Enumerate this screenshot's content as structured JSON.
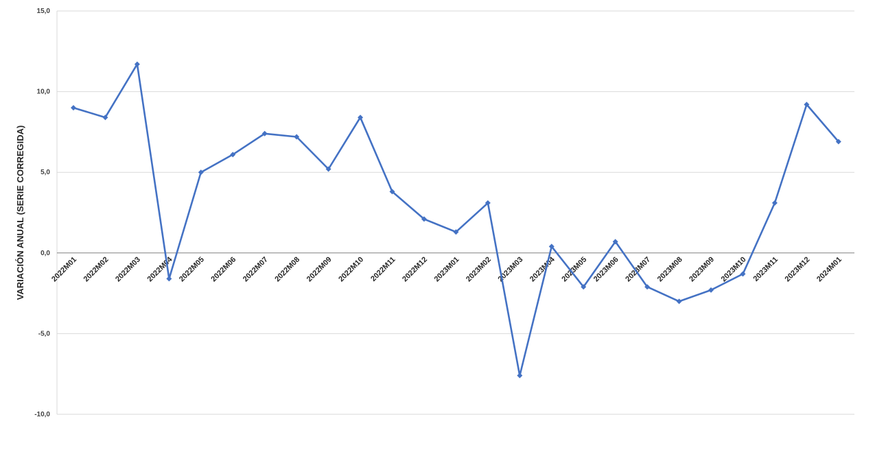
{
  "chart_data": {
    "type": "line",
    "title": "",
    "xlabel": "",
    "ylabel": "VARIACIÓN ANUAL (SERIE CORREGIDA)",
    "ylim": [
      -10,
      15
    ],
    "yticks": [
      -10,
      -5,
      0,
      5,
      10,
      15
    ],
    "ytick_labels": [
      "-10,0",
      "-5,0",
      "0,0",
      "5,0",
      "10,0",
      "15,0"
    ],
    "grid": true,
    "legend": "none",
    "categories": [
      "2022M01",
      "2022M02",
      "2022M03",
      "2022M04",
      "2022M05",
      "2022M06",
      "2022M07",
      "2022M08",
      "2022M09",
      "2022M10",
      "2022M11",
      "2022M12",
      "2023M01",
      "2023M02",
      "2023M03",
      "2023M04",
      "2023M05",
      "2023M06",
      "2023M07",
      "2023M08",
      "2023M09",
      "2023M10",
      "2023M11",
      "2023M12",
      "2024M01"
    ],
    "series": [
      {
        "color": "#4472C4",
        "values": [
          9.0,
          8.4,
          11.7,
          -1.6,
          5.0,
          6.1,
          7.4,
          7.2,
          5.2,
          8.4,
          3.8,
          2.1,
          1.3,
          3.1,
          -7.6,
          0.4,
          -2.1,
          0.7,
          -2.1,
          -3.0,
          -2.3,
          -1.3,
          3.1,
          9.2,
          6.9
        ]
      }
    ],
    "colors": {
      "line": "#4472C4",
      "grid": "#d9d9d9",
      "axis": "#808080"
    }
  }
}
